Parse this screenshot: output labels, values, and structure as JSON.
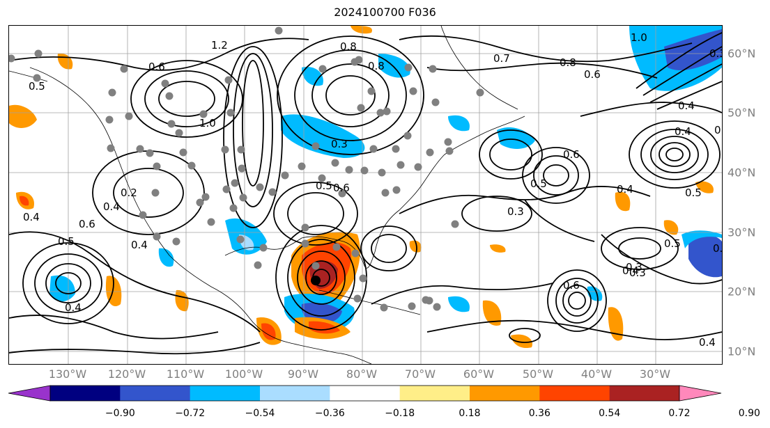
{
  "title": "2024100700 F036",
  "longitude_labels": [
    "130°W",
    "120°W",
    "110°W",
    "100°W",
    "90°W",
    "80°W",
    "70°W",
    "60°W",
    "50°W",
    "40°W",
    "30°W"
  ],
  "latitude_labels": [
    "60°N",
    "50°N",
    "40°N",
    "30°N",
    "20°N",
    "10°N"
  ],
  "colorbar": {
    "colors": [
      "#9933cc",
      "#000080",
      "#3355cc",
      "#00bbff",
      "#aaddff",
      "#ffffff",
      "#ffee88",
      "#ff9900",
      "#ff4400",
      "#aa2222",
      "#ff88bb"
    ],
    "tick_labels": [
      "−0.90",
      "−0.72",
      "−0.54",
      "−0.36",
      "−0.18",
      "0.18",
      "0.36",
      "0.54",
      "0.72",
      "0.90"
    ]
  },
  "contour_labels": [
    "1.2",
    "0.8",
    "0.8",
    "0.7",
    "0.8",
    "0.6",
    "1.0",
    "0.3",
    "0.6",
    "0.5",
    "0.4",
    "1.0",
    "0.4",
    "0.5",
    "0.3",
    "0.5",
    "0.6",
    "0.6",
    "0.5",
    "0.3",
    "0.4",
    "0.4",
    "0.4",
    "0.2",
    "0.4",
    "0.6",
    "0.5",
    "0.4",
    "0.3",
    "0.5",
    "0.4",
    "0.3",
    "0.6",
    "0.5",
    "0.2",
    "0.4"
  ],
  "colors": {
    "axis_label": "#7f7f7f",
    "grid": "#a0a0a0",
    "contour": "#000000",
    "station_dot": "#808080"
  }
}
